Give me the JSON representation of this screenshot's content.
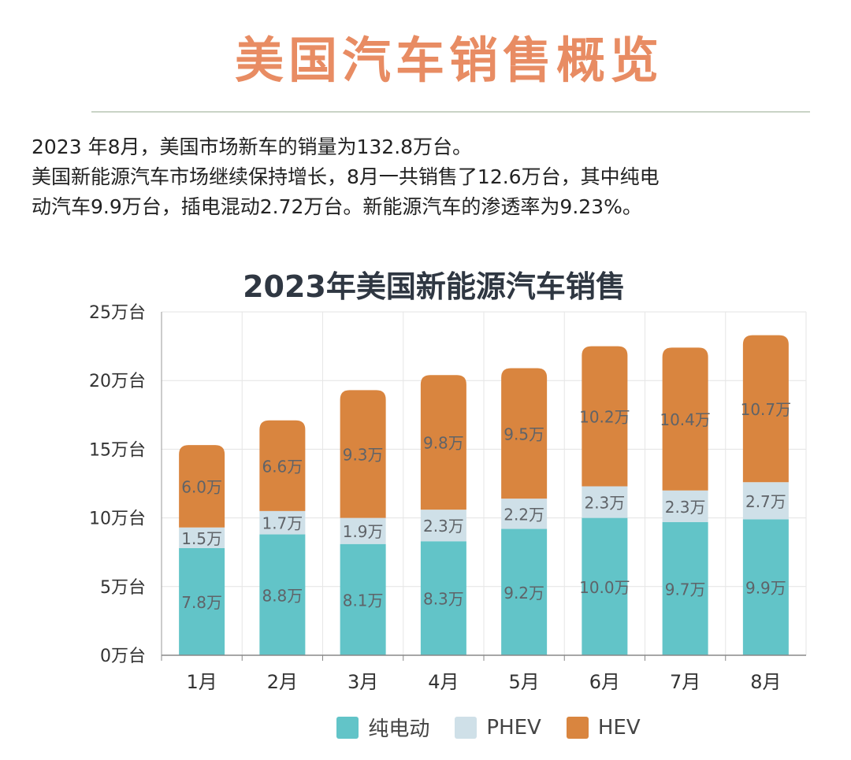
{
  "page": {
    "title": "美国汽车销售概览",
    "intro": [
      "2023 年8月，美国市场新车的销量为132.8万台。",
      "美国新能源汽车市场继续保持增长，8月一共销售了12.6万台，其中纯电",
      "动汽车9.9万台，插电混动2.72万台。新能源汽车的渗透率为9.23%。"
    ]
  },
  "chart_data": {
    "type": "bar",
    "stacked": true,
    "title": "2023年美国新能源汽车销售",
    "categories": [
      "1月",
      "2月",
      "3月",
      "4月",
      "5月",
      "6月",
      "7月",
      "8月"
    ],
    "series": [
      {
        "name": "纯电动",
        "color": "#62c4c8",
        "values": [
          7.8,
          8.8,
          8.1,
          8.3,
          9.2,
          10.0,
          9.7,
          9.9
        ],
        "labels": [
          "7.8万",
          "8.8万",
          "8.1万",
          "8.3万",
          "9.2万",
          "10.0万",
          "9.7万",
          "9.9万"
        ]
      },
      {
        "name": "PHEV",
        "color": "#cfe0e8",
        "values": [
          1.5,
          1.7,
          1.9,
          2.3,
          2.2,
          2.3,
          2.3,
          2.7
        ],
        "labels": [
          "1.5万",
          "1.7万",
          "1.9万",
          "2.3万",
          "2.2万",
          "2.3万",
          "2.3万",
          "2.7万"
        ]
      },
      {
        "name": "HEV",
        "color": "#d9853f",
        "values": [
          6.0,
          6.6,
          9.3,
          9.8,
          9.5,
          10.2,
          10.4,
          10.7
        ],
        "labels": [
          "6.0万",
          "6.6万",
          "9.3万",
          "9.8万",
          "9.5万",
          "10.2万",
          "10.4万",
          "10.7万"
        ]
      }
    ],
    "ylim": [
      0,
      25
    ],
    "yticks": [
      0,
      5,
      10,
      15,
      20,
      25
    ],
    "ytick_labels": [
      "0万台",
      "5万台",
      "10万台",
      "15万台",
      "20万台",
      "25万台"
    ],
    "grid": true,
    "legend": "bottom"
  }
}
